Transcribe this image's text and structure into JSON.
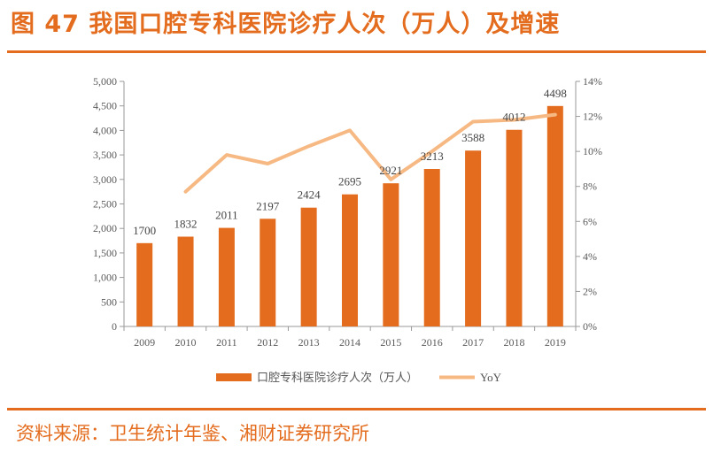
{
  "header": {
    "title": "图 47 我国口腔专科医院诊疗人次（万人）及增速"
  },
  "footer": {
    "source": "资料来源：卫生统计年鉴、湘财证券研究所"
  },
  "colors": {
    "accent": "#e36c1e",
    "bar": "#e36c1e",
    "line": "#f7b983",
    "axis": "#9a9a9a",
    "tick_text": "#5a5a5a"
  },
  "chart_data": {
    "type": "bar",
    "categories": [
      "2009",
      "2010",
      "2011",
      "2012",
      "2013",
      "2014",
      "2015",
      "2016",
      "2017",
      "2018",
      "2019"
    ],
    "series": [
      {
        "name": "口腔专科医院诊疗人次（万人）",
        "type": "bar",
        "axis": "left",
        "values": [
          1700,
          1832,
          2011,
          2197,
          2424,
          2695,
          2921,
          3213,
          3588,
          4012,
          4498
        ]
      },
      {
        "name": "YoY",
        "type": "line",
        "axis": "right",
        "values": [
          null,
          7.7,
          9.8,
          9.3,
          10.3,
          11.2,
          8.4,
          10.0,
          11.7,
          11.8,
          12.1
        ]
      }
    ],
    "data_labels": [
      "1700",
      "1832",
      "2011",
      "2197",
      "2424",
      "2695",
      "2921",
      "3213",
      "3588",
      "4012",
      "4498"
    ],
    "y_left": {
      "min": 0,
      "max": 5000,
      "step": 500,
      "tick_labels": [
        "0",
        "500",
        "1,000",
        "1,500",
        "2,000",
        "2,500",
        "3,000",
        "3,500",
        "4,000",
        "4,500",
        "5,000"
      ]
    },
    "y_right": {
      "min": 0,
      "max": 14,
      "step": 2,
      "unit": "%",
      "tick_labels": [
        "0%",
        "2%",
        "4%",
        "6%",
        "8%",
        "10%",
        "12%",
        "14%"
      ]
    },
    "grid": false,
    "legend_position": "bottom-center"
  }
}
